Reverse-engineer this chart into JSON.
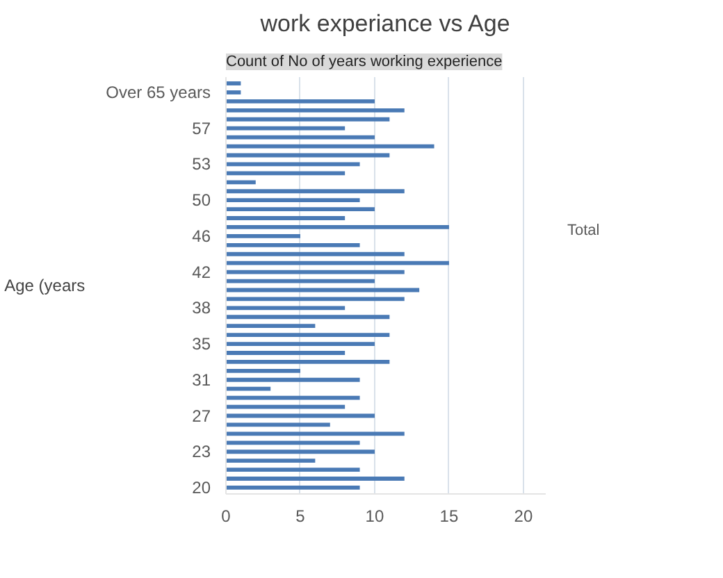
{
  "chart_data": {
    "type": "bar",
    "orientation": "horizontal",
    "title": "work experiance vs Age",
    "subtitle": "Count of No of years working experience",
    "ylabel": "Age (years",
    "categories": [
      null,
      "Over 65 years",
      null,
      null,
      null,
      "57",
      null,
      null,
      null,
      "53",
      null,
      null,
      null,
      "50",
      null,
      null,
      null,
      "46",
      null,
      null,
      null,
      "42",
      null,
      null,
      null,
      "38",
      null,
      null,
      null,
      "35",
      null,
      null,
      null,
      "31",
      null,
      null,
      null,
      "27",
      null,
      null,
      null,
      "23",
      null,
      null,
      null,
      "20"
    ],
    "series": [
      {
        "name": "Total",
        "color": "#4a7ab5",
        "values": [
          1,
          1,
          10,
          12,
          11,
          8,
          10,
          14,
          11,
          9,
          8,
          2,
          12,
          9,
          10,
          8,
          15,
          5,
          9,
          12,
          15,
          12,
          10,
          13,
          12,
          8,
          11,
          6,
          11,
          10,
          8,
          11,
          5,
          9,
          3,
          9,
          8,
          10,
          7,
          12,
          9,
          10,
          6,
          9,
          12,
          9
        ]
      }
    ],
    "xlim": [
      0,
      21.5
    ],
    "xticks": [
      0,
      5,
      10,
      15,
      20
    ],
    "grid": "x",
    "legend": "right"
  }
}
